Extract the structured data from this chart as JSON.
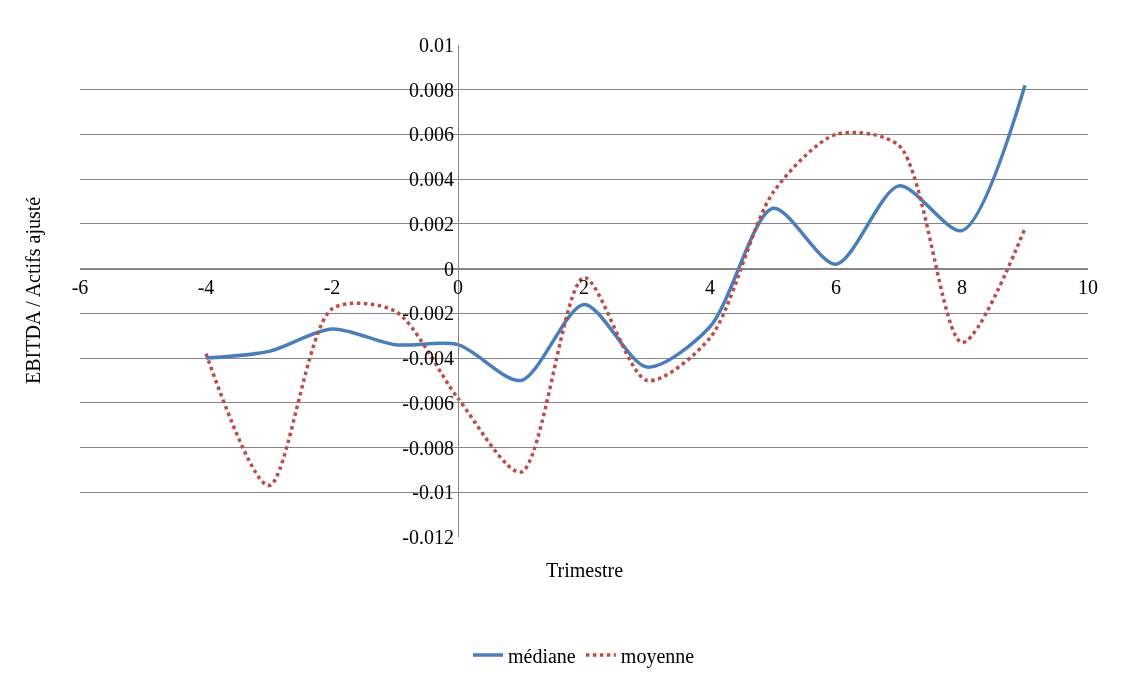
{
  "chart_data": {
    "type": "line",
    "xlabel": "Trimestre",
    "ylabel": "EBITDA / Actifs ajusté",
    "x": [
      -4,
      -3,
      -2,
      -1,
      0,
      1,
      2,
      3,
      4,
      5,
      6,
      7,
      8,
      9
    ],
    "series": [
      {
        "name": "médiane",
        "color": "#4a7ebb",
        "line_style": "solid",
        "values": [
          -0.004,
          -0.0037,
          -0.0027,
          -0.0034,
          -0.0034,
          -0.005,
          -0.0016,
          -0.0044,
          -0.0026,
          0.0027,
          0.0002,
          0.0037,
          0.0017,
          0.0082
        ]
      },
      {
        "name": "moyenne",
        "color": "#be4b48",
        "line_style": "dotted",
        "values": [
          -0.0038,
          -0.0097,
          -0.0018,
          -0.0019,
          -0.0058,
          -0.0091,
          -0.0004,
          -0.005,
          -0.0031,
          0.0034,
          0.006,
          0.0055,
          -0.0033,
          0.0018
        ]
      }
    ],
    "xlim": [
      -6,
      10
    ],
    "xticks": [
      -6,
      -4,
      -2,
      0,
      2,
      4,
      6,
      8,
      10
    ],
    "ylim": [
      -0.012,
      0.01
    ],
    "yticks": [
      -0.012,
      -0.01,
      -0.008,
      -0.006,
      -0.004,
      -0.002,
      0,
      0.002,
      0.004,
      0.006,
      0.008,
      0.01
    ],
    "grid": "y",
    "legend": "bottom",
    "marker": "none"
  }
}
